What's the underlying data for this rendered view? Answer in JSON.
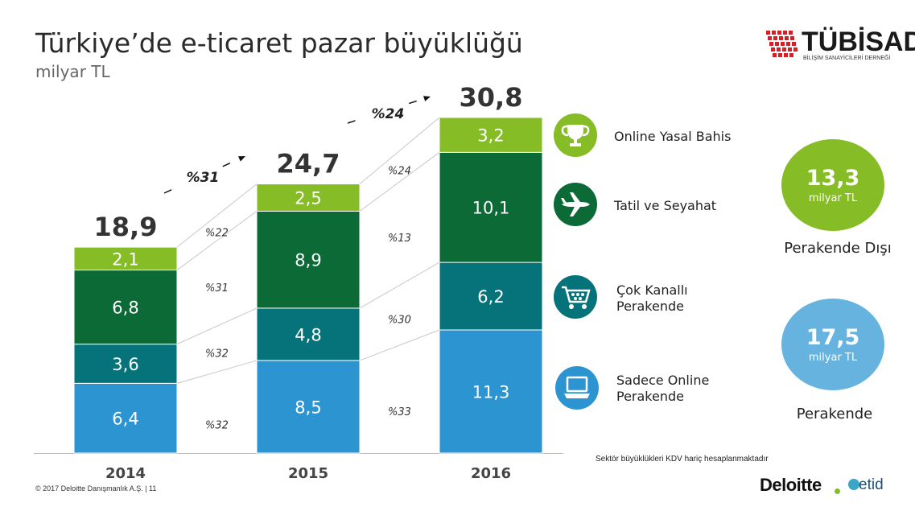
{
  "header": {
    "title": "Türkiye’de e-ticaret pazar büyüklüğü",
    "subtitle": "milyar TL"
  },
  "chart_data": {
    "type": "bar",
    "stacked": true,
    "categories": [
      "2014",
      "2015",
      "2016"
    ],
    "series": [
      {
        "name": "Sadece Online Perakende",
        "values": [
          6.4,
          8.5,
          11.3
        ],
        "labels": [
          "6,4",
          "8,5",
          "11,3"
        ],
        "color": "#2d94d2"
      },
      {
        "name": "Çok Kanallı Perakende",
        "values": [
          3.6,
          4.8,
          6.2
        ],
        "labels": [
          "3,6",
          "4,8",
          "6,2"
        ],
        "color": "#06737a"
      },
      {
        "name": "Tatil ve Seyahat",
        "values": [
          6.8,
          8.9,
          10.1
        ],
        "labels": [
          "6,8",
          "8,9",
          "10,1"
        ],
        "color": "#0b6a36"
      },
      {
        "name": "Online Yasal Bahis",
        "values": [
          2.1,
          2.5,
          3.2
        ],
        "labels": [
          "2,1",
          "2,5",
          "3,2"
        ],
        "color": "#86bc25"
      }
    ],
    "totals": [
      "18,9",
      "24,7",
      "30,8"
    ],
    "total_values": [
      18.9,
      24.7,
      30.8
    ],
    "growth_total": [
      "%31",
      "%24"
    ],
    "growth_segments": [
      [
        "%32",
        "%32",
        "%31",
        "%22"
      ],
      [
        "%33",
        "%30",
        "%13",
        "%24"
      ]
    ],
    "ylim": [
      0,
      30.8
    ]
  },
  "legend": [
    {
      "label": "Online Yasal Bahis",
      "icon": "trophy-icon",
      "color": "#86bc25"
    },
    {
      "label": "Tatil ve Seyahat",
      "icon": "airplane-icon",
      "color": "#0b6a36"
    },
    {
      "label": "Çok Kanallı\nPerakende",
      "icon": "shopping-cart-icon",
      "color": "#06737a"
    },
    {
      "label": "Sadece Online\nPerakende",
      "icon": "laptop-icon",
      "color": "#2d94d2"
    }
  ],
  "summary": {
    "non_retail": {
      "value": "13,3",
      "unit": "milyar TL",
      "label": "Perakende Dışı",
      "color": "#86bc25"
    },
    "retail": {
      "value": "17,5",
      "unit": "milyar TL",
      "label": "Perakende",
      "color": "#66b3e0"
    }
  },
  "footer": {
    "note": "Sektör büyüklükleri KDV hariç hesaplanmaktadır",
    "copyright": "© 2017 Deloitte Danışmanlık A.Ş.  |  11",
    "deloitte": "Deloitte",
    "etid": "etid",
    "tubisad": "TÜBİSAD",
    "tubisad_sub": "BİLİŞİM SANAYİCİLERİ DERNEĞİ"
  }
}
